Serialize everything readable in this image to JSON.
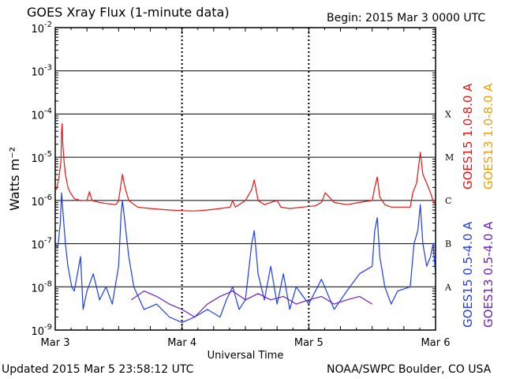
{
  "header": {
    "title": "GOES Xray Flux (1-minute data)",
    "begin": "Begin:  2015 Mar 3 0000 UTC"
  },
  "footer": {
    "updated": "Updated 2015 Mar  5 23:58:12 UTC",
    "credit": "NOAA/SWPC Boulder, CO USA"
  },
  "chart_data": {
    "type": "line",
    "title": "GOES Xray Flux (1-minute data)",
    "xlabel": "Universal Time",
    "ylabel": "Watts m⁻²",
    "yscale": "log",
    "ylim": [
      1e-09,
      0.01
    ],
    "xlim": [
      0,
      3
    ],
    "x_tick_labels": [
      "Mar 3",
      "Mar 4",
      "Mar 5",
      "Mar 6"
    ],
    "y_tick_labels": [
      {
        "base": "10",
        "exp": "-2",
        "value": 0.01
      },
      {
        "base": "10",
        "exp": "-3",
        "value": 0.001
      },
      {
        "base": "10",
        "exp": "-4",
        "value": 0.0001
      },
      {
        "base": "10",
        "exp": "-5",
        "value": 1e-05
      },
      {
        "base": "10",
        "exp": "-6",
        "value": 1e-06
      },
      {
        "base": "10",
        "exp": "-7",
        "value": 1e-07
      },
      {
        "base": "10",
        "exp": "-8",
        "value": 1e-08
      },
      {
        "base": "10",
        "exp": "-9",
        "value": 1e-09
      }
    ],
    "flare_classes": [
      {
        "label": "X",
        "value": 0.0001
      },
      {
        "label": "M",
        "value": 1e-05
      },
      {
        "label": "C",
        "value": 1e-06
      },
      {
        "label": "B",
        "value": 1e-07
      },
      {
        "label": "A",
        "value": 1e-08
      }
    ],
    "grid": "horizontal lines at each decade from 1e-8 to 1e-3; dotted vertical lines at day boundaries",
    "legend": [
      {
        "label": "GOES15 1.0-8.0 A",
        "color": "#e61414"
      },
      {
        "label": "GOES13 1.0-8.0 A",
        "color": "#f0a000"
      },
      {
        "label": "GOES15 0.5-4.0 A",
        "color": "#1e3cf0"
      },
      {
        "label": "GOES13 0.5-4.0 A",
        "color": "#6a1ec8"
      }
    ],
    "legend_position": "right side, vertical",
    "series": [
      {
        "name": "GOES15 1.0-8.0 A",
        "color": "#e61414",
        "points": [
          [
            0,
            2e-06
          ],
          [
            0.01,
            1.8e-06
          ],
          [
            0.02,
            2.5e-06
          ],
          [
            0.03,
            3.5e-06
          ],
          [
            0.045,
            8e-06
          ],
          [
            0.05,
            4e-05
          ],
          [
            0.055,
            6e-05
          ],
          [
            0.06,
            2e-05
          ],
          [
            0.07,
            8e-06
          ],
          [
            0.08,
            4e-06
          ],
          [
            0.1,
            2e-06
          ],
          [
            0.12,
            1.5e-06
          ],
          [
            0.15,
            1.1e-06
          ],
          [
            0.2,
            1e-06
          ],
          [
            0.25,
            1e-06
          ],
          [
            0.27,
            1.6e-06
          ],
          [
            0.29,
            1e-06
          ],
          [
            0.35,
            9e-07
          ],
          [
            0.4,
            8.5e-07
          ],
          [
            0.48,
            8e-07
          ],
          [
            0.5,
            1e-06
          ],
          [
            0.52,
            2.5e-06
          ],
          [
            0.53,
            4e-06
          ],
          [
            0.55,
            2e-06
          ],
          [
            0.58,
            1e-06
          ],
          [
            0.65,
            7e-07
          ],
          [
            0.75,
            6.5e-07
          ],
          [
            0.9,
            6e-07
          ],
          [
            1.0,
            5.8e-07
          ],
          [
            1.1,
            5.7e-07
          ],
          [
            1.2,
            6e-07
          ],
          [
            1.3,
            6.5e-07
          ],
          [
            1.38,
            7e-07
          ],
          [
            1.4,
            1e-06
          ],
          [
            1.42,
            7e-07
          ],
          [
            1.45,
            8e-07
          ],
          [
            1.5,
            1e-06
          ],
          [
            1.55,
            1.8e-06
          ],
          [
            1.57,
            3e-06
          ],
          [
            1.6,
            1e-06
          ],
          [
            1.65,
            8e-07
          ],
          [
            1.7,
            9e-07
          ],
          [
            1.75,
            1e-06
          ],
          [
            1.78,
            7e-07
          ],
          [
            1.85,
            6.5e-07
          ],
          [
            1.95,
            7e-07
          ],
          [
            2.05,
            7.5e-07
          ],
          [
            2.1,
            9e-07
          ],
          [
            2.13,
            1.5e-06
          ],
          [
            2.2,
            9e-07
          ],
          [
            2.3,
            8e-07
          ],
          [
            2.4,
            9e-07
          ],
          [
            2.5,
            1e-06
          ],
          [
            2.52,
            2e-06
          ],
          [
            2.54,
            3.5e-06
          ],
          [
            2.56,
            1.2e-06
          ],
          [
            2.6,
            8e-07
          ],
          [
            2.65,
            7e-07
          ],
          [
            2.8,
            7e-07
          ],
          [
            2.82,
            1.5e-06
          ],
          [
            2.85,
            2.5e-06
          ],
          [
            2.88,
            1.3e-05
          ],
          [
            2.9,
            4e-06
          ],
          [
            2.93,
            2.5e-06
          ],
          [
            2.96,
            1.5e-06
          ],
          [
            2.98,
            1e-06
          ],
          [
            3.0,
            8e-07
          ]
        ]
      },
      {
        "name": "GOES15 0.5-4.0 A",
        "color": "#1e3cf0",
        "points": [
          [
            0,
            1e-07
          ],
          [
            0.02,
            8e-08
          ],
          [
            0.04,
            3e-07
          ],
          [
            0.05,
            1.5e-06
          ],
          [
            0.06,
            6e-07
          ],
          [
            0.08,
            1e-07
          ],
          [
            0.1,
            3e-08
          ],
          [
            0.13,
            1e-08
          ],
          [
            0.15,
            8e-09
          ],
          [
            0.2,
            5e-08
          ],
          [
            0.22,
            3e-09
          ],
          [
            0.25,
            8e-09
          ],
          [
            0.3,
            2e-08
          ],
          [
            0.35,
            5e-09
          ],
          [
            0.4,
            1e-08
          ],
          [
            0.45,
            4e-09
          ],
          [
            0.5,
            3e-08
          ],
          [
            0.52,
            5e-07
          ],
          [
            0.53,
            1e-06
          ],
          [
            0.55,
            3e-07
          ],
          [
            0.58,
            5e-08
          ],
          [
            0.62,
            1e-08
          ],
          [
            0.7,
            3e-09
          ],
          [
            0.8,
            4e-09
          ],
          [
            0.9,
            2e-09
          ],
          [
            1.0,
            1.5e-09
          ],
          [
            1.1,
            2e-09
          ],
          [
            1.2,
            3e-09
          ],
          [
            1.3,
            2e-09
          ],
          [
            1.35,
            5e-09
          ],
          [
            1.4,
            1e-08
          ],
          [
            1.45,
            3e-09
          ],
          [
            1.5,
            5e-09
          ],
          [
            1.55,
            1e-07
          ],
          [
            1.57,
            2e-07
          ],
          [
            1.6,
            2e-08
          ],
          [
            1.65,
            5e-09
          ],
          [
            1.7,
            3e-08
          ],
          [
            1.75,
            4e-09
          ],
          [
            1.8,
            2e-08
          ],
          [
            1.85,
            3e-09
          ],
          [
            1.9,
            1e-08
          ],
          [
            2.0,
            4e-09
          ],
          [
            2.1,
            1.5e-08
          ],
          [
            2.2,
            3e-09
          ],
          [
            2.3,
            8e-09
          ],
          [
            2.4,
            2e-08
          ],
          [
            2.5,
            3e-08
          ],
          [
            2.52,
            2e-07
          ],
          [
            2.54,
            4e-07
          ],
          [
            2.56,
            5e-08
          ],
          [
            2.6,
            1e-08
          ],
          [
            2.65,
            4e-09
          ],
          [
            2.7,
            8e-09
          ],
          [
            2.8,
            1e-08
          ],
          [
            2.83,
            1e-07
          ],
          [
            2.86,
            2e-07
          ],
          [
            2.88,
            8e-07
          ],
          [
            2.9,
            1e-07
          ],
          [
            2.93,
            3e-08
          ],
          [
            2.96,
            5e-08
          ],
          [
            2.98,
            1e-07
          ],
          [
            3.0,
            2e-08
          ]
        ]
      },
      {
        "name": "GOES13 0.5-4.0 A",
        "color": "#6a1ec8",
        "points": [
          [
            0.6,
            5e-09
          ],
          [
            0.7,
            8e-09
          ],
          [
            0.8,
            6e-09
          ],
          [
            0.9,
            4e-09
          ],
          [
            1.0,
            3e-09
          ],
          [
            1.1,
            2e-09
          ],
          [
            1.2,
            4e-09
          ],
          [
            1.3,
            6e-09
          ],
          [
            1.4,
            8e-09
          ],
          [
            1.5,
            5e-09
          ],
          [
            1.6,
            7e-09
          ],
          [
            1.7,
            5e-09
          ],
          [
            1.8,
            6e-09
          ],
          [
            1.9,
            4e-09
          ],
          [
            2.0,
            5e-09
          ],
          [
            2.1,
            6e-09
          ],
          [
            2.2,
            4e-09
          ],
          [
            2.3,
            5e-09
          ],
          [
            2.4,
            6e-09
          ],
          [
            2.5,
            4e-09
          ]
        ]
      }
    ]
  }
}
